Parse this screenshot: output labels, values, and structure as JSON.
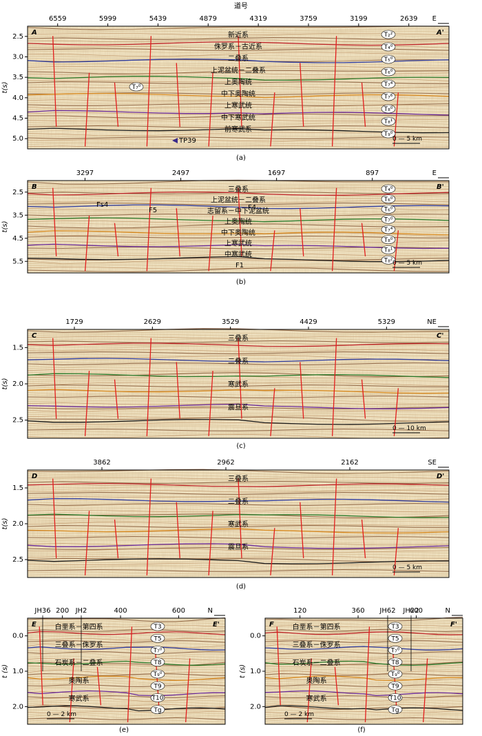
{
  "figure": {
    "top_title": "道号",
    "panels": [
      {
        "id": "a",
        "caption": "(a)",
        "corner_left": "A",
        "corner_right": "A'",
        "direction": "E",
        "ylabel": "t(s)",
        "xticks": [
          "6559",
          "5999",
          "5439",
          "4879",
          "4319",
          "3759",
          "3199",
          "2639"
        ],
        "yticks": [
          "2.5",
          "3.0",
          "3.5",
          "4.0",
          "4.5",
          "5.0"
        ],
        "units": [
          "新近系",
          "侏罗系－古近系",
          "二叠系",
          "上泥盆统－二叠系",
          "上奥陶统",
          "中下奥陶统",
          "上寒武统",
          "中下寒武统",
          "前寒武系"
        ],
        "horizons": [
          "T₂²",
          "T₄⁰",
          "T₅⁰",
          "T₆⁰",
          "T₇⁴",
          "T₇⁶",
          "T₈⁰",
          "T₈¹",
          "T₉⁰"
        ],
        "left_horizon": "T₇⁰",
        "well": "TP39",
        "scale": "0 — 5 km"
      },
      {
        "id": "b",
        "caption": "(b)",
        "corner_left": "B",
        "corner_right": "B'",
        "direction": "E",
        "ylabel": "t(s)",
        "xticks": [
          "3297",
          "2497",
          "1697",
          "897"
        ],
        "yticks": [
          "2.5",
          "3.5",
          "4.5",
          "5.5"
        ],
        "units": [
          "三叠系",
          "上泥盆统－二叠系",
          "志留系－中下泥盆统",
          "上奥陶统",
          "中下奥陶统",
          "上寒武统",
          "中寒武统"
        ],
        "horizons": [
          "T₄⁰",
          "T₆⁰",
          "T₆⁰",
          "T₇⁰",
          "T₇⁴",
          "T₈⁰",
          "T₈¹",
          "T₈²"
        ],
        "faults": [
          "Fs4",
          "F5",
          "F4",
          "F1"
        ],
        "scale": "0 — 5 km"
      },
      {
        "id": "c",
        "caption": "(c)",
        "corner_left": "C",
        "corner_right": "C'",
        "direction": "NE",
        "ylabel": "t(s)",
        "xticks": [
          "1729",
          "2629",
          "3529",
          "4429",
          "5329"
        ],
        "yticks": [
          "1.5",
          "2.0",
          "2.5"
        ],
        "units": [
          "三叠系",
          "二叠系",
          "寒武系",
          "震旦系"
        ],
        "scale": "0 — 10 km"
      },
      {
        "id": "d",
        "caption": "(d)",
        "corner_left": "D",
        "corner_right": "D'",
        "direction": "SE",
        "ylabel": "t(s)",
        "xticks": [
          "3862",
          "2962",
          "2162"
        ],
        "yticks": [
          "1.5",
          "2.0",
          "2.5"
        ],
        "units": [
          "三叠系",
          "二叠系",
          "寒武系",
          "震旦系"
        ],
        "scale": "0 — 5 km"
      },
      {
        "id": "e",
        "caption": "(e)",
        "corner_left": "E",
        "corner_right": "E'",
        "direction": "N",
        "ylabel": "t (s)",
        "xticks": [
          "200",
          "400",
          "600"
        ],
        "yticks": [
          "0.0",
          "1.0",
          "2.0"
        ],
        "wells": [
          "JH36",
          "JH2"
        ],
        "units": [
          "白垩系－第四系",
          "三叠系－侏罗系",
          "石炭系－二叠系",
          "奥陶系",
          "寒武系"
        ],
        "horizons": [
          "T3",
          "T5",
          "T₇⁰",
          "T8",
          "T₉⁰",
          "T9",
          "T10",
          "Tg"
        ],
        "scale": "0 — 2 km"
      },
      {
        "id": "f",
        "caption": "(f)",
        "corner_left": "F",
        "corner_right": "F'",
        "direction": "N",
        "ylabel": "t (s)",
        "xticks": [
          "120",
          "360",
          "600"
        ],
        "yticks": [
          "0.0",
          "1.0",
          "2.0"
        ],
        "wells": [
          "JH62",
          "JH22"
        ],
        "units": [
          "白垩系－第四系",
          "三叠系－侏罗系",
          "石炭系－二叠系",
          "奥陶系",
          "寒武系"
        ],
        "horizons": [
          "T3",
          "T5",
          "T₇⁰",
          "T8",
          "T₉⁰",
          "T9",
          "T10",
          "Tg"
        ],
        "scale": "0 — 2 km"
      }
    ]
  }
}
